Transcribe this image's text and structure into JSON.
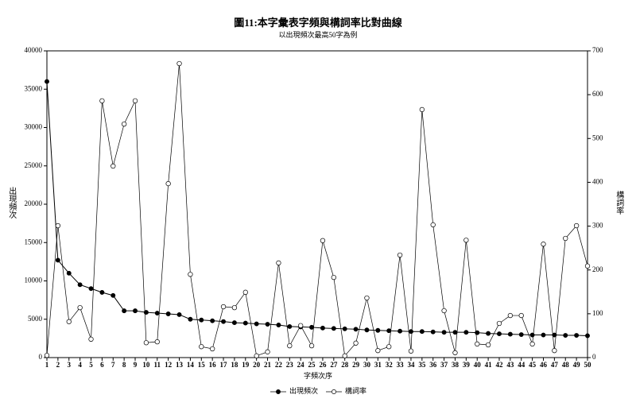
{
  "chart_data": {
    "type": "line",
    "title": "圖11:本字彙表字頻與構詞率比對曲線",
    "subtitle": "以出現頻次最高50字為例",
    "xlabel": "字頻次序",
    "ylabel": "出現頻次",
    "y2label": "構詞率",
    "x": [
      1,
      2,
      3,
      4,
      5,
      6,
      7,
      8,
      9,
      10,
      11,
      12,
      13,
      14,
      15,
      16,
      17,
      18,
      19,
      20,
      21,
      22,
      23,
      24,
      25,
      26,
      27,
      28,
      29,
      30,
      31,
      32,
      33,
      34,
      35,
      36,
      37,
      38,
      39,
      40,
      41,
      42,
      43,
      44,
      45,
      46,
      47,
      48,
      49,
      50
    ],
    "xlim": [
      1,
      50
    ],
    "xticks": [
      1,
      2,
      3,
      4,
      5,
      6,
      7,
      8,
      9,
      10,
      11,
      12,
      13,
      14,
      15,
      16,
      17,
      18,
      19,
      20,
      21,
      22,
      23,
      24,
      25,
      26,
      27,
      28,
      29,
      30,
      31,
      32,
      33,
      34,
      35,
      36,
      37,
      38,
      39,
      40,
      41,
      42,
      43,
      44,
      45,
      46,
      47,
      48,
      49,
      50
    ],
    "ylim": [
      0,
      40000
    ],
    "yticks": [
      0,
      5000,
      10000,
      15000,
      20000,
      25000,
      30000,
      35000,
      40000
    ],
    "y2lim": [
      0,
      700
    ],
    "y2ticks": [
      0,
      100,
      200,
      300,
      400,
      500,
      600,
      700
    ],
    "series": [
      {
        "name": "出現頻次",
        "color": "#000000",
        "marker": "filled",
        "values": [
          36000,
          12700,
          11000,
          9500,
          9000,
          8500,
          8100,
          6100,
          6100,
          5900,
          5800,
          5700,
          5600,
          5000,
          4900,
          4800,
          4700,
          4550,
          4500,
          4400,
          4350,
          4250,
          4050,
          4000,
          3950,
          3850,
          3800,
          3750,
          3700,
          3600,
          3550,
          3500,
          3450,
          3400,
          3400,
          3350,
          3300,
          3300,
          3300,
          3250,
          3150,
          3100,
          3050,
          3000,
          2950,
          2950,
          2950,
          2900,
          2900,
          2850
        ]
      },
      {
        "name": "構詞率",
        "color": "#000000",
        "marker": "open",
        "axis": "y2",
        "values": [
          5,
          301,
          82,
          114,
          42,
          586,
          437,
          533,
          586,
          34,
          36,
          397,
          671,
          190,
          25,
          20,
          116,
          114,
          149,
          4,
          13,
          216,
          27,
          73,
          27,
          267,
          183,
          4,
          33,
          136,
          16,
          25,
          234,
          15,
          566,
          303,
          107,
          11,
          268,
          31,
          29,
          78,
          96,
          96,
          31,
          259,
          16,
          272,
          301,
          209
        ]
      }
    ]
  }
}
